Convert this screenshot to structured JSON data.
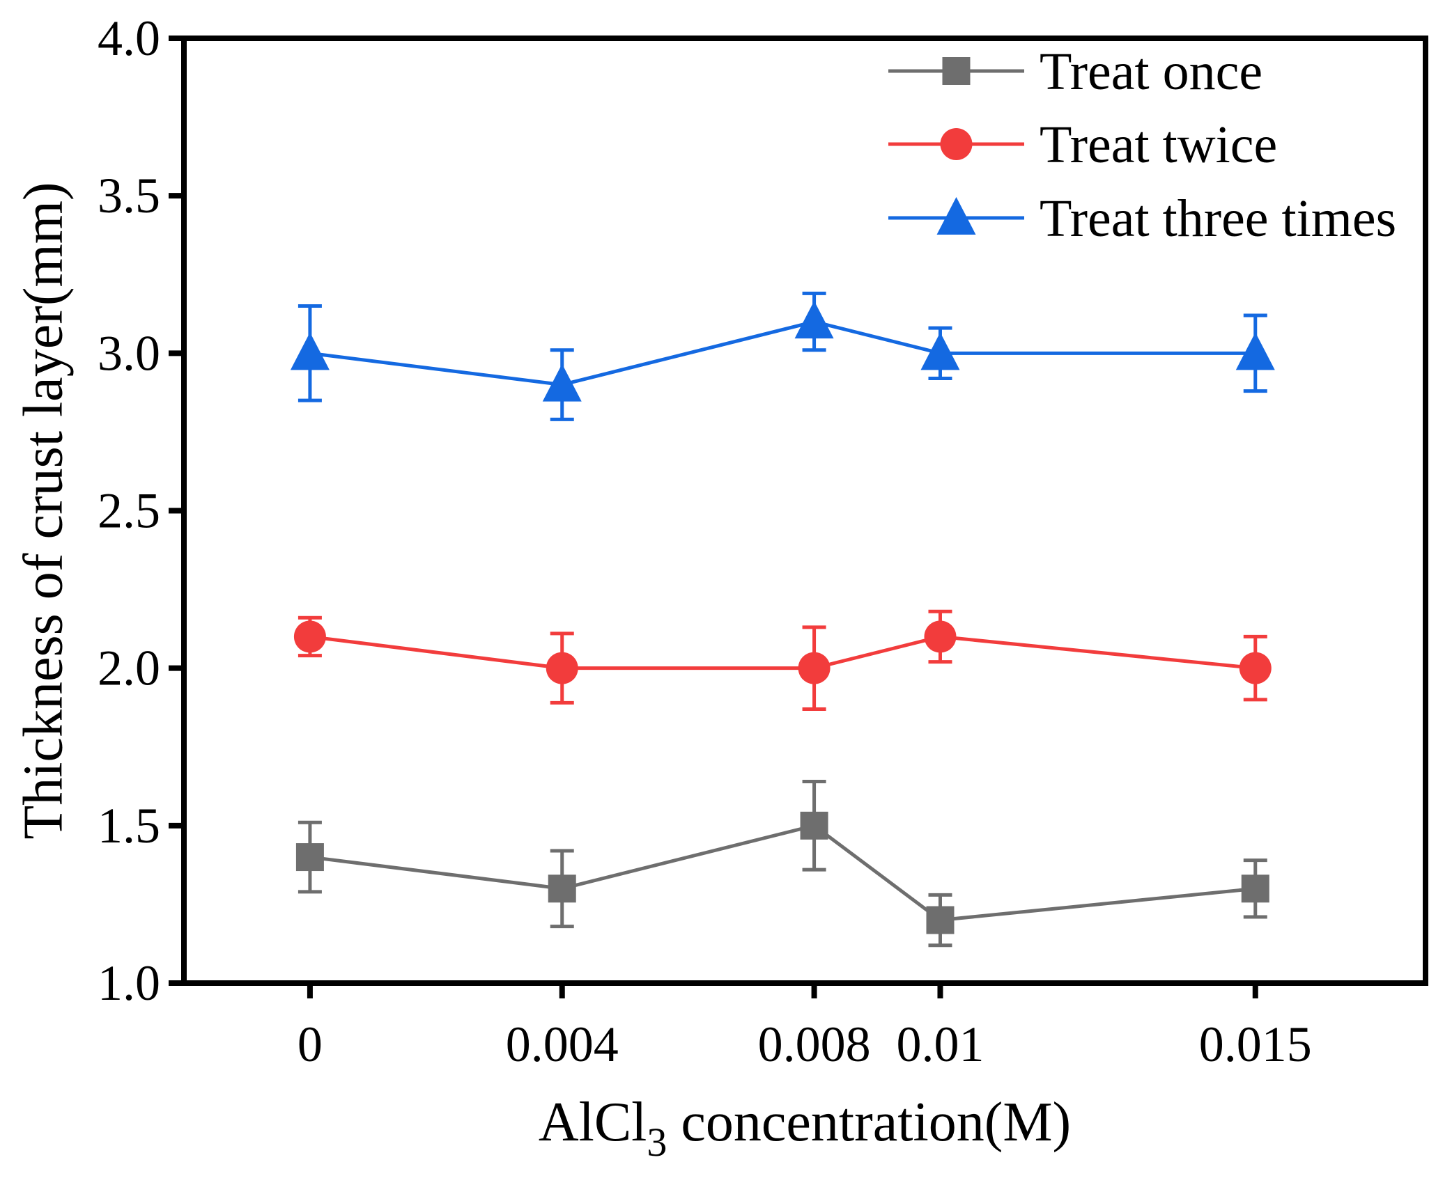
{
  "chart_data": {
    "type": "line",
    "title": "",
    "xlabel": {
      "main": "AlCl",
      "sub": "3",
      "rest": " concentration(M)"
    },
    "ylabel": "Thickness of crust layer(mm)",
    "x": [
      0,
      0.004,
      0.008,
      0.01,
      0.015
    ],
    "x_tick_labels": [
      "0",
      "0.004",
      "0.008",
      "0.01",
      "0.015"
    ],
    "xlim": [
      -0.002,
      0.0177
    ],
    "ylim": [
      1.0,
      4.0
    ],
    "y_ticks": [
      1.0,
      1.5,
      2.0,
      2.5,
      3.0,
      3.5,
      4.0
    ],
    "y_tick_labels": [
      "1.0",
      "1.5",
      "2.0",
      "2.5",
      "3.0",
      "3.5",
      "4.0"
    ],
    "legend_position": "top-right",
    "series": [
      {
        "name": "Treat once",
        "marker": "square",
        "color": "#6e6e6e",
        "values": [
          1.4,
          1.3,
          1.5,
          1.2,
          1.3
        ],
        "error_upper": [
          1.51,
          1.42,
          1.64,
          1.28,
          1.39
        ],
        "error_lower": [
          1.29,
          1.18,
          1.36,
          1.12,
          1.21
        ]
      },
      {
        "name": "Treat twice",
        "marker": "circle",
        "color": "#f23c3c",
        "values": [
          2.1,
          2.0,
          2.0,
          2.1,
          2.0
        ],
        "error_upper": [
          2.16,
          2.11,
          2.13,
          2.18,
          2.1
        ],
        "error_lower": [
          2.04,
          1.89,
          1.87,
          2.02,
          1.9
        ]
      },
      {
        "name": "Treat three times",
        "marker": "triangle",
        "color": "#1469e1",
        "values": [
          3.0,
          2.9,
          3.1,
          3.0,
          3.0
        ],
        "error_upper": [
          3.15,
          3.01,
          3.19,
          3.08,
          3.12
        ],
        "error_lower": [
          2.85,
          2.79,
          3.01,
          2.92,
          2.88
        ]
      }
    ]
  }
}
